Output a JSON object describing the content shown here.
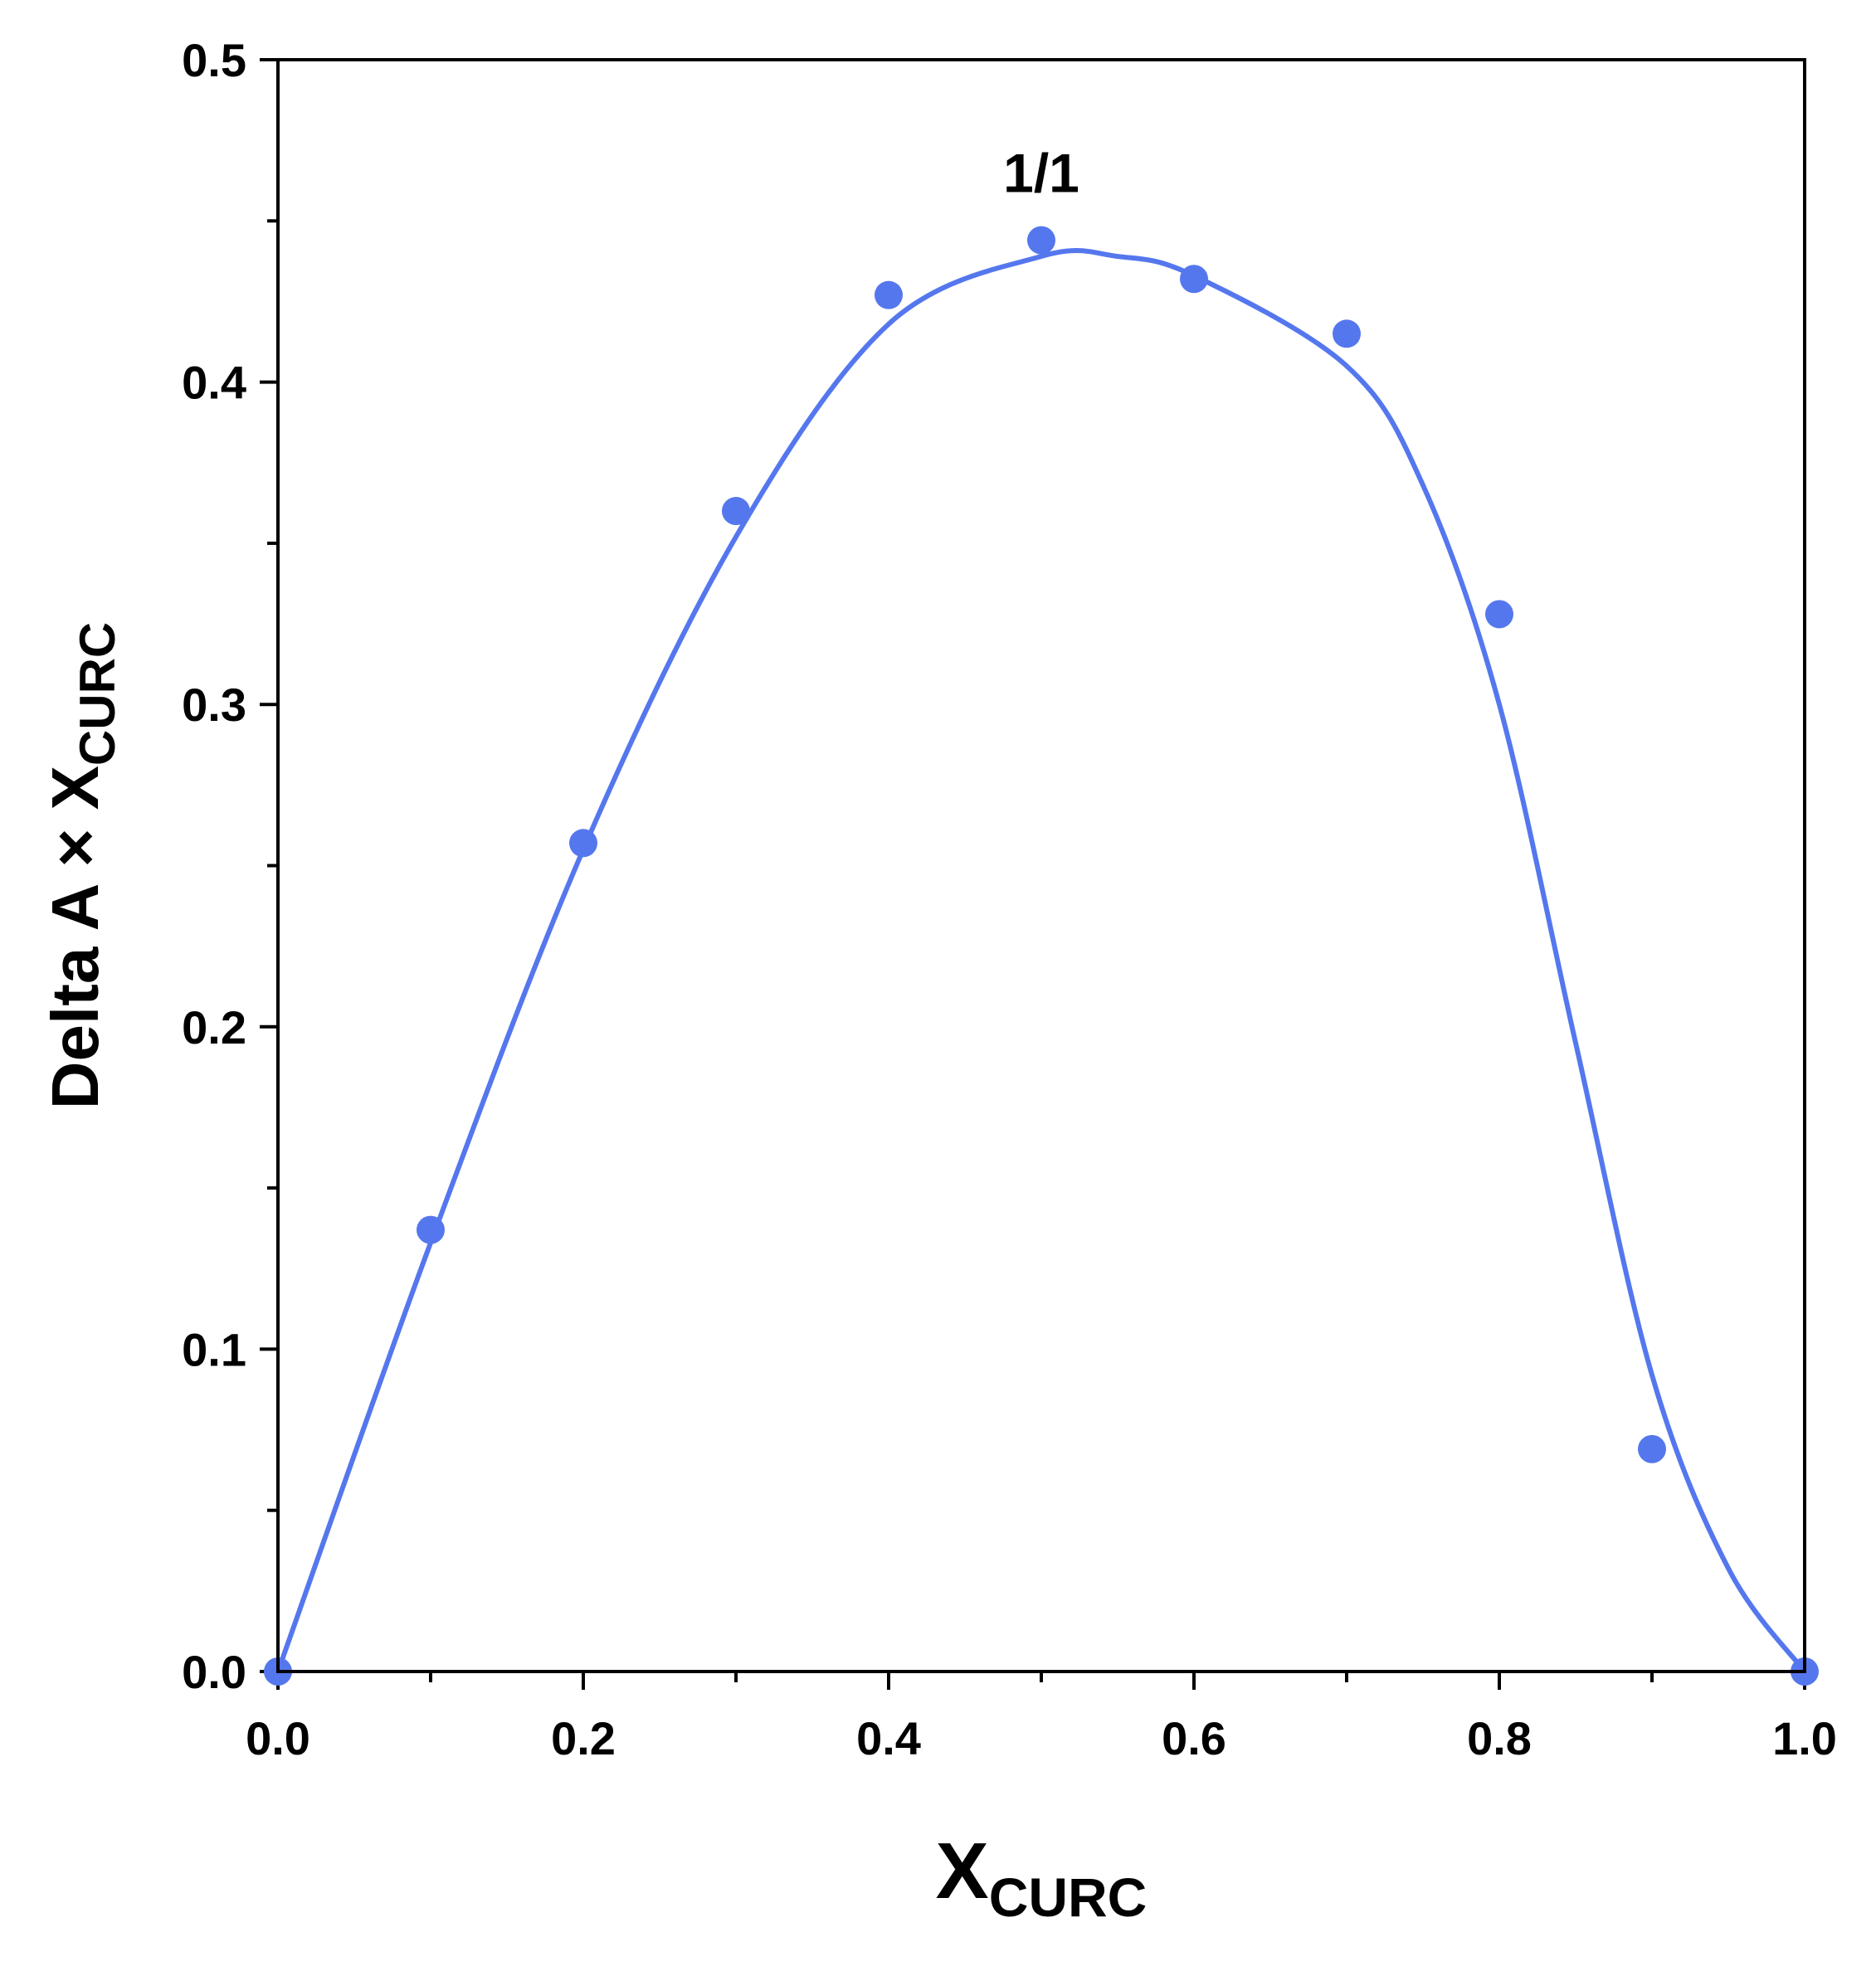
{
  "chart_data": {
    "type": "scatter",
    "xlabel": {
      "main": "X",
      "sub": "CURC"
    },
    "ylabel": {
      "main": "Delta A × X",
      "sub": "CURC"
    },
    "xlim": [
      0.0,
      1.0
    ],
    "ylim": [
      0.0,
      0.5
    ],
    "x_ticks": [
      "0.0",
      "0.2",
      "0.4",
      "0.6",
      "0.8",
      "1.0"
    ],
    "y_ticks": [
      "0.0",
      "0.1",
      "0.2",
      "0.3",
      "0.4",
      "0.5"
    ],
    "grid": false,
    "legend": "none",
    "color": "#5577ee",
    "series": [
      {
        "x": [
          0.0,
          0.1,
          0.2,
          0.3,
          0.4,
          0.5,
          0.6,
          0.7,
          0.8,
          0.9,
          1.0
        ],
        "y": [
          0.0,
          0.137,
          0.257,
          0.36,
          0.427,
          0.444,
          0.432,
          0.415,
          0.328,
          0.069,
          0.0
        ]
      }
    ],
    "fit_curve": {
      "x": [
        0.0,
        0.1,
        0.2,
        0.3,
        0.4,
        0.5,
        0.55,
        0.6,
        0.7,
        0.75,
        0.8,
        0.85,
        0.9,
        0.95,
        1.0
      ],
      "y": [
        0.0,
        0.133,
        0.255,
        0.352,
        0.418,
        0.439,
        0.439,
        0.433,
        0.405,
        0.368,
        0.3,
        0.195,
        0.092,
        0.032,
        0.0
      ]
    },
    "annotations": [
      {
        "text": "1/1",
        "x": 0.5,
        "y": 0.459
      }
    ]
  }
}
